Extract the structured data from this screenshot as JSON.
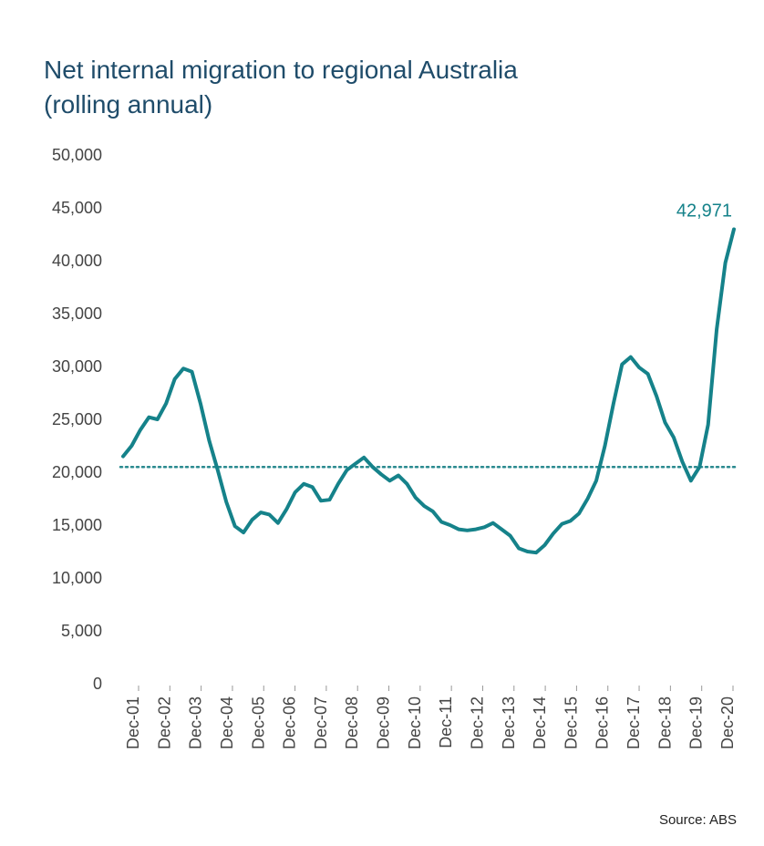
{
  "title_line1": "Net internal migration to regional Australia",
  "title_line2": "(rolling annual)",
  "source_label": "Source: ABS",
  "chart": {
    "type": "line",
    "background_color": "#ffffff",
    "line_color": "#15828a",
    "line_width": 4,
    "average_line_color": "#2a8a8f",
    "average_line_width": 2.5,
    "average_value": 20500,
    "axis_text_color": "#444444",
    "yaxis_fontsize": 18,
    "xaxis_fontsize": 18,
    "title_fontsize": 28,
    "ylim": [
      0,
      50000
    ],
    "ytick_step": 5000,
    "yticks": [
      0,
      5000,
      10000,
      15000,
      20000,
      25000,
      30000,
      35000,
      40000,
      45000,
      50000
    ],
    "xticks": [
      "Dec-01",
      "Dec-02",
      "Dec-03",
      "Dec-04",
      "Dec-05",
      "Dec-06",
      "Dec-07",
      "Dec-08",
      "Dec-09",
      "Dec-10",
      "Dec-11",
      "Dec-12",
      "Dec-13",
      "Dec-14",
      "Dec-15",
      "Dec-16",
      "Dec-17",
      "Dec-18",
      "Dec-19",
      "Dec-20"
    ],
    "end_label_text": "42,971",
    "end_label_color": "#15828a",
    "end_label_fontsize": 20,
    "values": [
      21500,
      22500,
      24000,
      25200,
      25000,
      26500,
      28800,
      29800,
      29500,
      26500,
      23000,
      20200,
      17200,
      14900,
      14300,
      15500,
      16200,
      16000,
      15200,
      16500,
      18100,
      18900,
      18600,
      17300,
      17400,
      18900,
      20200,
      20800,
      21400,
      20500,
      19800,
      19200,
      19700,
      18900,
      17600,
      16800,
      16300,
      15300,
      15000,
      14600,
      14500,
      14600,
      14800,
      15200,
      14600,
      14000,
      12800,
      12500,
      12400,
      13100,
      14200,
      15100,
      15400,
      16100,
      17500,
      19200,
      22500,
      26500,
      30200,
      30900,
      29900,
      29300,
      27200,
      24700,
      23300,
      21000,
      19200,
      20500,
      24500,
      33500,
      39800,
      42971
    ]
  }
}
